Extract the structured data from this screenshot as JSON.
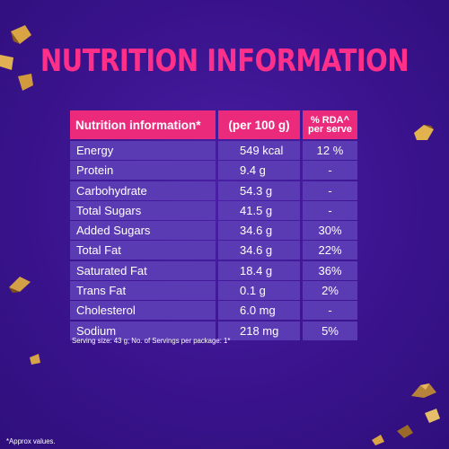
{
  "title": "NUTRITION INFORMATION",
  "table": {
    "headers": [
      "Nutrition information*",
      "(per 100 g)",
      "% RDA^",
      "per serve"
    ],
    "rows": [
      {
        "name": "Energy",
        "per100g": "549 kcal",
        "rda": "12 %"
      },
      {
        "name": "Protein",
        "per100g": "9.4 g",
        "rda": "-"
      },
      {
        "name": "Carbohydrate",
        "per100g": "54.3 g",
        "rda": "-"
      },
      {
        "name": "Total Sugars",
        "per100g": "41.5 g",
        "rda": "-"
      },
      {
        "name": "Added Sugars",
        "per100g": "34.6 g",
        "rda": "30%"
      },
      {
        "name": "Total Fat",
        "per100g": "34.6 g",
        "rda": "22%"
      },
      {
        "name": "Saturated Fat",
        "per100g": "18.4 g",
        "rda": "36%"
      },
      {
        "name": "Trans Fat",
        "per100g": "0.1 g",
        "rda": "2%"
      },
      {
        "name": "Cholesterol",
        "per100g": "6.0 mg",
        "rda": "-"
      },
      {
        "name": "Sodium",
        "per100g": "218 mg",
        "rda": "5%"
      }
    ]
  },
  "footnote": "Serving size: 43 g; No. of Servings per package: 1*",
  "approx": "*Approx values.",
  "colors": {
    "background": "#3a138d",
    "accent": "#ec2a7c",
    "row": "#5b3bb3"
  }
}
